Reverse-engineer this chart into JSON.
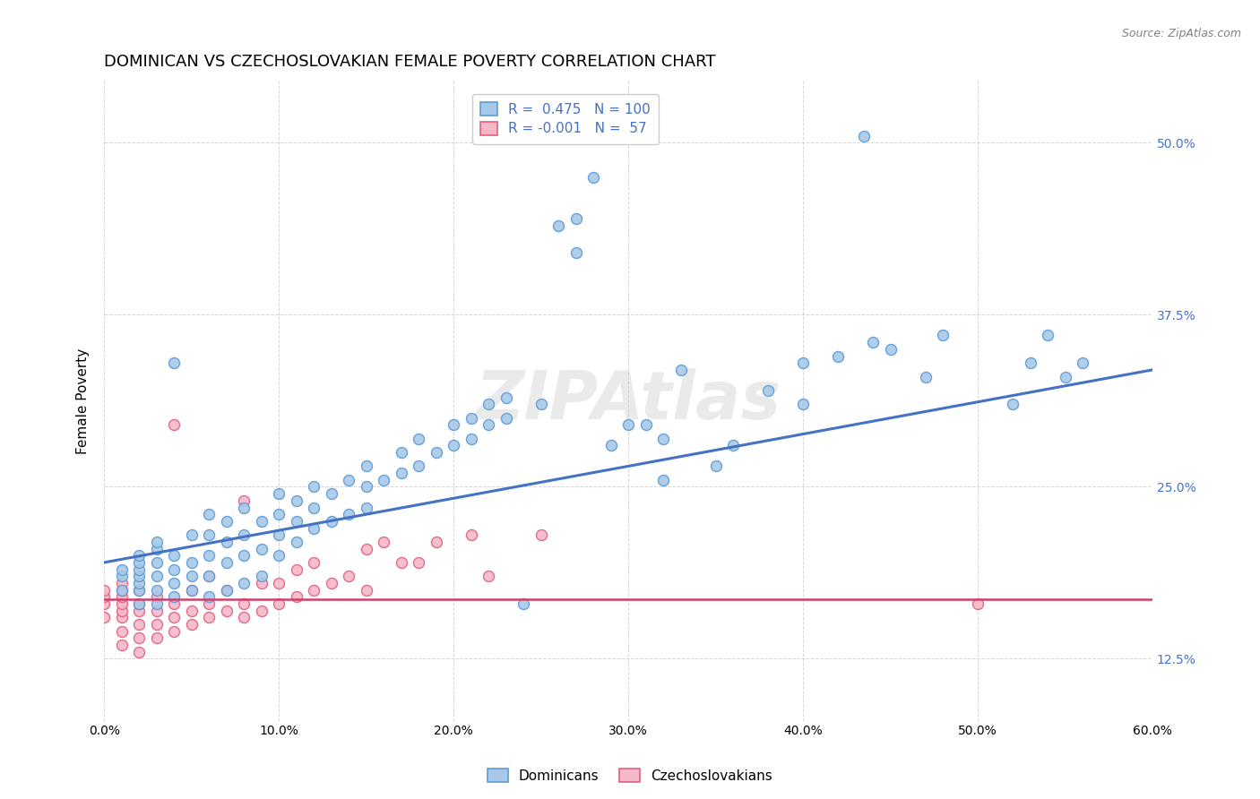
{
  "title": "DOMINICAN VS CZECHOSLOVAKIAN FEMALE POVERTY CORRELATION CHART",
  "source": "Source: ZipAtlas.com",
  "xlabel_ticks": [
    "0.0%",
    "10.0%",
    "20.0%",
    "30.0%",
    "40.0%",
    "50.0%",
    "60.0%"
  ],
  "xlim": [
    0.0,
    0.6
  ],
  "ylim": [
    0.08,
    0.545
  ],
  "ytick_right_labels": [
    "12.5%",
    "25.0%",
    "37.5%",
    "50.0%"
  ],
  "ytick_right_values": [
    0.125,
    0.25,
    0.375,
    0.5
  ],
  "dominican_color": "#A8C8E8",
  "dominican_edge_color": "#5B9BD5",
  "czech_color": "#F4B8C8",
  "czech_edge_color": "#E06080",
  "regression_line_dominican_color": "#4472C4",
  "regression_line_czech_color": "#D0406A",
  "background_color": "#FFFFFF",
  "grid_color": "#CCCCCC",
  "title_fontsize": 13,
  "axis_label_fontsize": 11,
  "tick_fontsize": 10,
  "legend_R_dominican": "0.475",
  "legend_N_dominican": "100",
  "legend_R_czech": "-0.001",
  "legend_N_czech": "57",
  "watermark": "ZIPAtlas",
  "marker_size": 75,
  "marker_linewidth": 1.0,
  "dom_x": [
    0.01,
    0.01,
    0.01,
    0.02,
    0.02,
    0.02,
    0.02,
    0.02,
    0.02,
    0.02,
    0.03,
    0.03,
    0.03,
    0.03,
    0.03,
    0.03,
    0.04,
    0.04,
    0.04,
    0.04,
    0.04,
    0.05,
    0.05,
    0.05,
    0.05,
    0.06,
    0.06,
    0.06,
    0.06,
    0.06,
    0.07,
    0.07,
    0.07,
    0.07,
    0.08,
    0.08,
    0.08,
    0.08,
    0.09,
    0.09,
    0.09,
    0.1,
    0.1,
    0.1,
    0.1,
    0.11,
    0.11,
    0.11,
    0.12,
    0.12,
    0.12,
    0.13,
    0.13,
    0.14,
    0.14,
    0.15,
    0.15,
    0.15,
    0.16,
    0.17,
    0.17,
    0.18,
    0.18,
    0.19,
    0.2,
    0.2,
    0.21,
    0.21,
    0.22,
    0.22,
    0.23,
    0.23,
    0.24,
    0.25,
    0.26,
    0.27,
    0.27,
    0.28,
    0.29,
    0.3,
    0.31,
    0.32,
    0.32,
    0.33,
    0.35,
    0.36,
    0.38,
    0.4,
    0.4,
    0.42,
    0.44,
    0.45,
    0.47,
    0.48,
    0.52,
    0.53,
    0.54,
    0.55,
    0.56,
    0.435
  ],
  "dom_y": [
    0.175,
    0.185,
    0.19,
    0.165,
    0.175,
    0.18,
    0.185,
    0.19,
    0.195,
    0.2,
    0.165,
    0.175,
    0.185,
    0.195,
    0.205,
    0.21,
    0.17,
    0.18,
    0.19,
    0.2,
    0.34,
    0.175,
    0.185,
    0.195,
    0.215,
    0.17,
    0.185,
    0.2,
    0.215,
    0.23,
    0.175,
    0.195,
    0.21,
    0.225,
    0.18,
    0.2,
    0.215,
    0.235,
    0.185,
    0.205,
    0.225,
    0.2,
    0.215,
    0.23,
    0.245,
    0.21,
    0.225,
    0.24,
    0.22,
    0.235,
    0.25,
    0.225,
    0.245,
    0.23,
    0.255,
    0.235,
    0.25,
    0.265,
    0.255,
    0.26,
    0.275,
    0.265,
    0.285,
    0.275,
    0.28,
    0.295,
    0.285,
    0.3,
    0.295,
    0.31,
    0.3,
    0.315,
    0.165,
    0.31,
    0.44,
    0.445,
    0.42,
    0.475,
    0.28,
    0.295,
    0.295,
    0.255,
    0.285,
    0.335,
    0.265,
    0.28,
    0.32,
    0.31,
    0.34,
    0.345,
    0.355,
    0.35,
    0.33,
    0.36,
    0.31,
    0.34,
    0.36,
    0.33,
    0.34,
    0.505
  ],
  "czk_x": [
    0.0,
    0.0,
    0.0,
    0.0,
    0.01,
    0.01,
    0.01,
    0.01,
    0.01,
    0.01,
    0.01,
    0.01,
    0.02,
    0.02,
    0.02,
    0.02,
    0.02,
    0.02,
    0.03,
    0.03,
    0.03,
    0.03,
    0.04,
    0.04,
    0.04,
    0.04,
    0.05,
    0.05,
    0.05,
    0.06,
    0.06,
    0.06,
    0.07,
    0.07,
    0.08,
    0.08,
    0.08,
    0.09,
    0.09,
    0.1,
    0.1,
    0.11,
    0.11,
    0.12,
    0.12,
    0.13,
    0.14,
    0.15,
    0.15,
    0.16,
    0.17,
    0.18,
    0.19,
    0.21,
    0.22,
    0.25,
    0.5
  ],
  "czk_y": [
    0.155,
    0.165,
    0.17,
    0.175,
    0.135,
    0.145,
    0.155,
    0.16,
    0.165,
    0.17,
    0.175,
    0.18,
    0.13,
    0.14,
    0.15,
    0.16,
    0.165,
    0.175,
    0.14,
    0.15,
    0.16,
    0.17,
    0.145,
    0.155,
    0.165,
    0.295,
    0.15,
    0.16,
    0.175,
    0.155,
    0.165,
    0.185,
    0.16,
    0.175,
    0.155,
    0.165,
    0.24,
    0.16,
    0.18,
    0.165,
    0.18,
    0.17,
    0.19,
    0.175,
    0.195,
    0.18,
    0.185,
    0.175,
    0.205,
    0.21,
    0.195,
    0.195,
    0.21,
    0.215,
    0.185,
    0.215,
    0.165
  ],
  "dom_regression": [
    0.0,
    0.6,
    0.195,
    0.335
  ],
  "czk_regression": [
    0.0,
    0.6,
    0.168,
    0.168
  ]
}
